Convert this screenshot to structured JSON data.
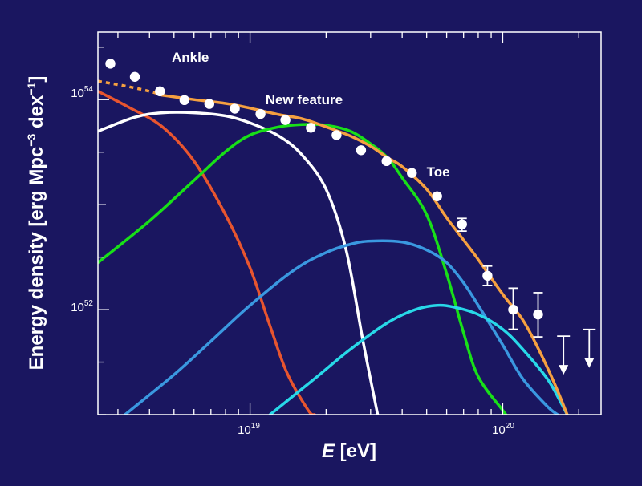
{
  "chart_data": {
    "type": "line",
    "xlabel_symbol": "E",
    "xlabel_unit": " [eV]",
    "ylabel": "Energy density [erg Mpc",
    "ylabel_sup": "−3",
    "ylabel_tail": " dex",
    "ylabel_sup2": "−1",
    "ylabel_end": "]",
    "x_scale": "log",
    "y_scale": "log",
    "xlim": [
      2.5e+18,
      2.45e+20
    ],
    "ylim": [
      1e+51,
      4.4e+54
    ],
    "x_ticks": [
      {
        "base": "10",
        "exp": "19",
        "value": 1e+19
      },
      {
        "base": "10",
        "exp": "20",
        "value": 1e+20
      }
    ],
    "y_ticks": [
      {
        "base": "10",
        "exp": "52",
        "value": 1e+52
      },
      {
        "base": "10",
        "exp": "54",
        "value": 1e+54
      }
    ],
    "annotations": [
      {
        "text": "Ankle",
        "x": 4.9e+18,
        "y": 2.3e+54
      },
      {
        "text": "New feature",
        "x": 1.15e+19,
        "y": 9e+53
      },
      {
        "text": "Toe",
        "x": 5e+19,
        "y": 1.85e+53
      }
    ],
    "colors": {
      "background": "#1a1660",
      "frame": "#ffffff",
      "total": "#f5a040",
      "points": "#ffffff"
    },
    "series": [
      {
        "color": "#e8552f",
        "points": [
          [
            2.5e+18,
            1.2e+54
          ],
          [
            3.3e+18,
            8.5e+53
          ],
          [
            4.5e+18,
            5.5e+53
          ],
          [
            6e+18,
            2.6e+53
          ],
          [
            8e+18,
            8e+52
          ],
          [
            1e+19,
            2.5e+52
          ],
          [
            1.2e+19,
            7e+51
          ],
          [
            1.4e+19,
            2.5e+51
          ],
          [
            1.7e+19,
            1.1e+51
          ],
          [
            1.8e+19,
            1e+51
          ]
        ]
      },
      {
        "color": "#ffffff",
        "points": [
          [
            2.5e+18,
            5e+53
          ],
          [
            3.5e+18,
            6.8e+53
          ],
          [
            4.5e+18,
            7.5e+53
          ],
          [
            6e+18,
            7.5e+53
          ],
          [
            8e+18,
            7e+53
          ],
          [
            1e+19,
            6e+53
          ],
          [
            1.3e+19,
            4.5e+53
          ],
          [
            1.6e+19,
            3e+53
          ],
          [
            2e+19,
            1.4e+53
          ],
          [
            2.4e+19,
            3.7e+52
          ],
          [
            2.8e+19,
            5e+51
          ],
          [
            3.2e+19,
            1e+51
          ]
        ]
      },
      {
        "color": "#18e018",
        "points": [
          [
            2.5e+18,
            2.8e+52
          ],
          [
            4e+18,
            7e+52
          ],
          [
            6e+18,
            1.7e+53
          ],
          [
            8e+18,
            3.2e+53
          ],
          [
            1e+19,
            4.6e+53
          ],
          [
            1.3e+19,
            5.5e+53
          ],
          [
            1.6e+19,
            5.8e+53
          ],
          [
            2e+19,
            5.7e+53
          ],
          [
            2.5e+19,
            5e+53
          ],
          [
            3e+19,
            3.8e+53
          ],
          [
            3.5e+19,
            2.8e+53
          ],
          [
            4e+19,
            1.8e+53
          ],
          [
            5e+19,
            8e+52
          ],
          [
            6e+19,
            2.2e+52
          ],
          [
            7e+19,
            6e+51
          ],
          [
            8e+19,
            2.3e+51
          ],
          [
            1e+20,
            1.1e+51
          ],
          [
            1.03e+20,
            1e+51
          ]
        ]
      },
      {
        "color": "#3a98e0",
        "points": [
          [
            3.2e+18,
            1e+51
          ],
          [
            5e+18,
            2.4e+51
          ],
          [
            7e+18,
            5e+51
          ],
          [
            1e+19,
            1.1e+52
          ],
          [
            1.5e+19,
            2.4e+52
          ],
          [
            2e+19,
            3.5e+52
          ],
          [
            2.5e+19,
            4.2e+52
          ],
          [
            3e+19,
            4.5e+52
          ],
          [
            4e+19,
            4.4e+52
          ],
          [
            5e+19,
            3.7e+52
          ],
          [
            6e+19,
            2.8e+52
          ],
          [
            7e+19,
            1.8e+52
          ],
          [
            8e+19,
            1.1e+52
          ],
          [
            1e+20,
            4.6e+51
          ],
          [
            1.2e+20,
            2.2e+51
          ],
          [
            1.5e+20,
            1.2e+51
          ],
          [
            1.65e+20,
            1e+51
          ]
        ]
      },
      {
        "color": "#28d8e8",
        "points": [
          [
            1.2e+19,
            1e+51
          ],
          [
            1.8e+19,
            2.2e+51
          ],
          [
            2.5e+19,
            4.2e+51
          ],
          [
            3.5e+19,
            7.5e+51
          ],
          [
            4.5e+19,
            1e+52
          ],
          [
            5.5e+19,
            1.1e+52
          ],
          [
            6.5e+19,
            1.05e+52
          ],
          [
            8e+19,
            9e+51
          ],
          [
            1e+20,
            6.5e+51
          ],
          [
            1.2e+20,
            4.2e+51
          ],
          [
            1.5e+20,
            2.2e+51
          ],
          [
            1.7e+20,
            1.3e+51
          ],
          [
            1.8e+20,
            1e+51
          ]
        ]
      },
      {
        "color": "#f5a040",
        "points": [
          [
            4.5e+18,
            1.1e+54
          ],
          [
            6e+18,
            1e+54
          ],
          [
            8e+18,
            9.2e+53
          ],
          [
            1e+19,
            8.3e+53
          ],
          [
            1.3e+19,
            7.2e+53
          ],
          [
            1.6e+19,
            6.6e+53
          ],
          [
            2e+19,
            5.5e+53
          ],
          [
            2.5e+19,
            4.5e+53
          ],
          [
            3e+19,
            3.6e+53
          ],
          [
            3.5e+19,
            2.8e+53
          ],
          [
            4e+19,
            2.3e+53
          ],
          [
            5e+19,
            1.4e+53
          ],
          [
            6e+19,
            7.5e+52
          ],
          [
            7e+19,
            4.6e+52
          ],
          [
            8e+19,
            3e+52
          ],
          [
            1e+20,
            1.4e+52
          ],
          [
            1.2e+20,
            8e+51
          ],
          [
            1.4e+20,
            4e+51
          ],
          [
            1.6e+20,
            2e+51
          ],
          [
            1.8e+20,
            1e+51
          ]
        ]
      },
      {
        "color": "#f5a040",
        "dashed": true,
        "points": [
          [
            2.5e+18,
            1.5e+54
          ],
          [
            3.2e+18,
            1.35e+54
          ],
          [
            4e+18,
            1.2e+54
          ],
          [
            4.5e+18,
            1.1e+54
          ]
        ]
      }
    ],
    "data_points": [
      {
        "x": 2.8e+18,
        "y": 2.2e+54
      },
      {
        "x": 3.5e+18,
        "y": 1.65e+54
      },
      {
        "x": 4.4e+18,
        "y": 1.2e+54
      },
      {
        "x": 5.5e+18,
        "y": 9.9e+53
      },
      {
        "x": 6.9e+18,
        "y": 9.1e+53
      },
      {
        "x": 8.7e+18,
        "y": 8.2e+53
      },
      {
        "x": 1.1e+19,
        "y": 7.3e+53
      },
      {
        "x": 1.38e+19,
        "y": 6.4e+53
      },
      {
        "x": 1.74e+19,
        "y": 5.4e+53
      },
      {
        "x": 2.2e+19,
        "y": 4.6e+53
      },
      {
        "x": 2.75e+19,
        "y": 3.3e+53
      },
      {
        "x": 3.47e+19,
        "y": 2.6e+53
      },
      {
        "x": 4.37e+19,
        "y": 2e+53
      },
      {
        "x": 5.5e+19,
        "y": 1.2e+53
      },
      {
        "x": 6.9e+19,
        "y": 6.5e+52,
        "err_lo": 5.6e+52,
        "err_hi": 7.4e+52
      },
      {
        "x": 8.7e+19,
        "y": 2.1e+52,
        "err_lo": 1.7e+52,
        "err_hi": 2.6e+52
      },
      {
        "x": 1.1e+20,
        "y": 1e+52,
        "err_lo": 6.5e+51,
        "err_hi": 1.6e+52
      },
      {
        "x": 1.38e+20,
        "y": 9e+51,
        "err_lo": 5.5e+51,
        "err_hi": 1.45e+52
      }
    ],
    "upper_limits": [
      {
        "x": 1.74e+20,
        "y": 3.8e+51
      },
      {
        "x": 2.2e+20,
        "y": 4.4e+51
      }
    ]
  }
}
